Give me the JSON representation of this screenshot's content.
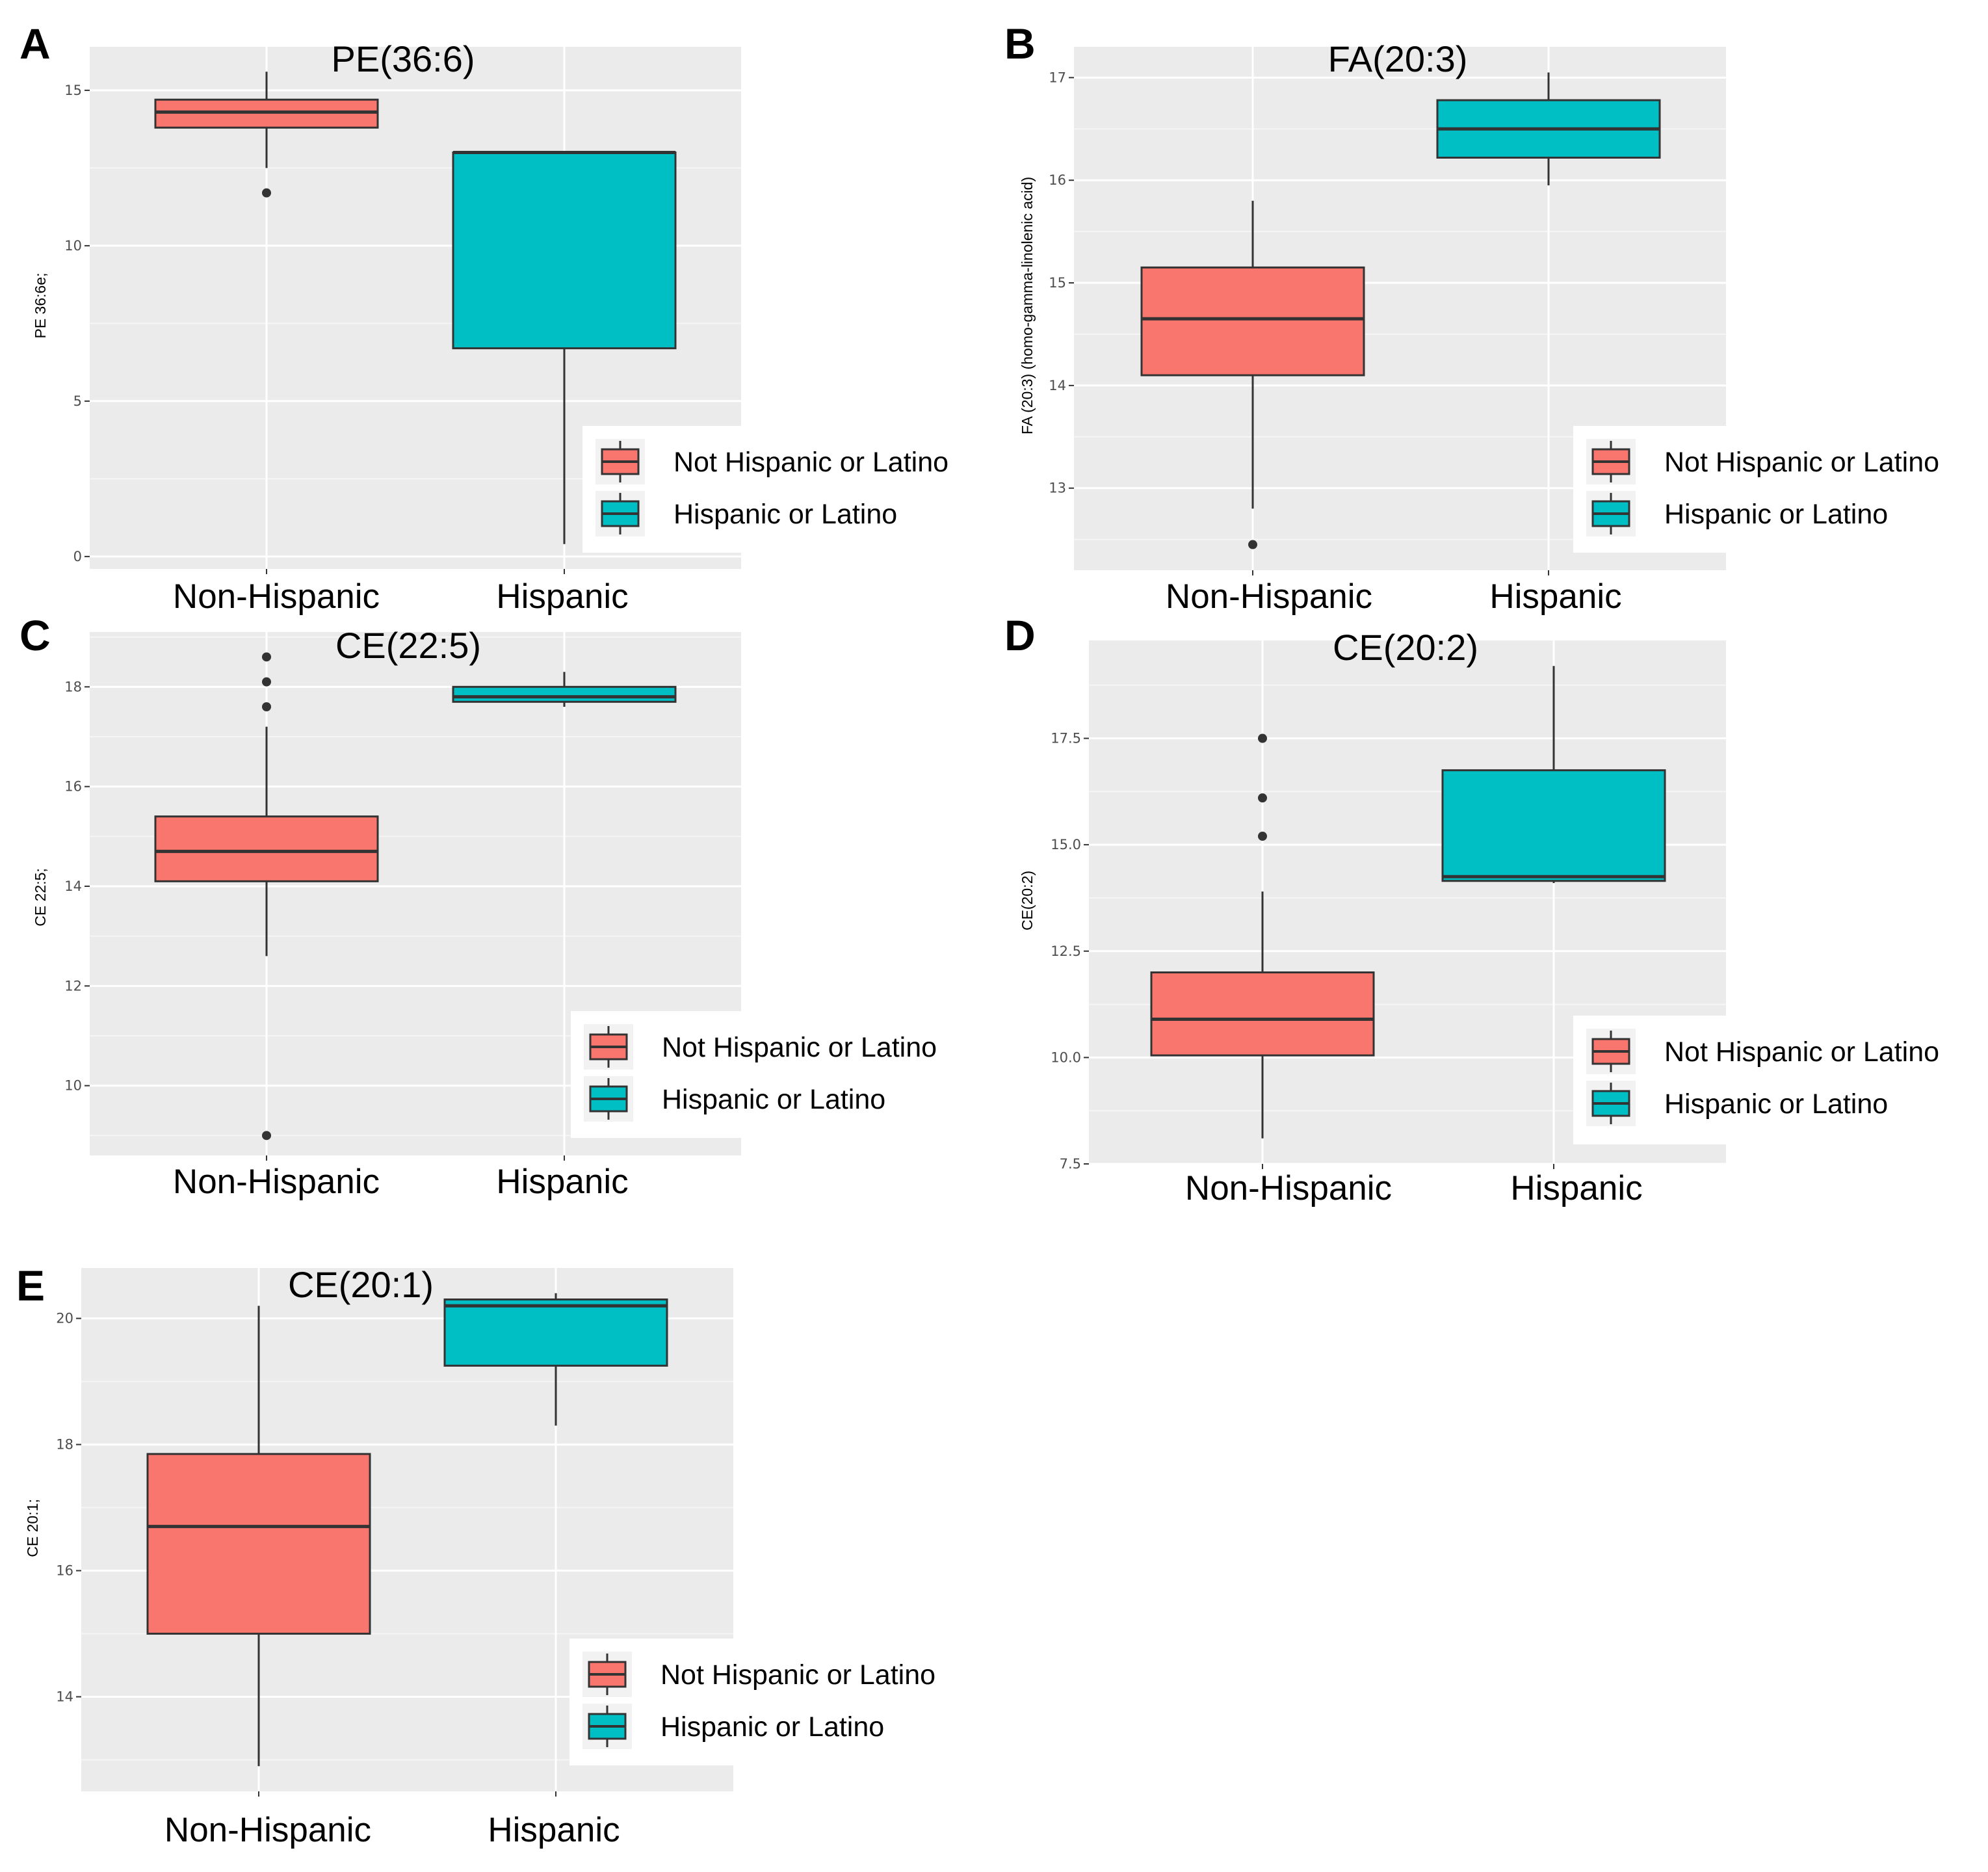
{
  "chart_data": [
    {
      "panel": "A",
      "type": "box",
      "title": "PE(36:6)",
      "ylabel": "PE 36:6e;",
      "ylim": [
        -0.4,
        16.4
      ],
      "yticks": [
        0,
        5,
        10,
        15
      ],
      "ytick_labels": [
        "0",
        "5",
        "10",
        "15"
      ],
      "categories": [
        "Non-Hispanic",
        "Hispanic"
      ],
      "series": [
        {
          "name": "Not Hispanic or Latino",
          "color": "#F8766D",
          "whisker_low": 12.5,
          "q1": 13.8,
          "median": 14.3,
          "q3": 14.7,
          "whisker_high": 15.6,
          "outliers": [
            11.7
          ]
        },
        {
          "name": "Hispanic or Latino",
          "color": "#00BFC4",
          "whisker_low": 0.4,
          "q1": 6.7,
          "median": 13.0,
          "q3": 13.0,
          "whisker_high": 13.0,
          "outliers": []
        }
      ],
      "legend": [
        "Not Hispanic or Latino",
        "Hispanic or Latino"
      ]
    },
    {
      "panel": "B",
      "type": "box",
      "title": "FA(20:3)",
      "ylabel": "FA (20:3) (homo-gamma-linolenic acid)",
      "ylim": [
        12.2,
        17.3
      ],
      "yticks": [
        13,
        14,
        15,
        16,
        17
      ],
      "ytick_labels": [
        "13",
        "14",
        "15",
        "16",
        "17"
      ],
      "categories": [
        "Non-Hispanic",
        "Hispanic"
      ],
      "series": [
        {
          "name": "Not Hispanic or Latino",
          "color": "#F8766D",
          "whisker_low": 12.8,
          "q1": 14.1,
          "median": 14.65,
          "q3": 15.15,
          "whisker_high": 15.8,
          "outliers": [
            12.45
          ]
        },
        {
          "name": "Hispanic or Latino",
          "color": "#00BFC4",
          "whisker_low": 15.95,
          "q1": 16.22,
          "median": 16.5,
          "q3": 16.78,
          "whisker_high": 17.05,
          "outliers": []
        }
      ],
      "legend": [
        "Not Hispanic or Latino",
        "Hispanic or Latino"
      ]
    },
    {
      "panel": "C",
      "type": "box",
      "title": "CE(22:5)",
      "ylabel": "CE 22:5;",
      "ylim": [
        8.6,
        19.1
      ],
      "yticks": [
        10,
        12,
        14,
        16,
        18
      ],
      "ytick_labels": [
        "10",
        "12",
        "14",
        "16",
        "18"
      ],
      "categories": [
        "Non-Hispanic",
        "Hispanic"
      ],
      "series": [
        {
          "name": "Not Hispanic or Latino",
          "color": "#F8766D",
          "whisker_low": 12.6,
          "q1": 14.1,
          "median": 14.7,
          "q3": 15.4,
          "whisker_high": 17.2,
          "outliers": [
            9.0,
            17.6,
            18.1,
            18.6
          ]
        },
        {
          "name": "Hispanic or Latino",
          "color": "#00BFC4",
          "whisker_low": 17.6,
          "q1": 17.7,
          "median": 17.8,
          "q3": 18.0,
          "whisker_high": 18.3,
          "outliers": []
        }
      ],
      "legend": [
        "Not Hispanic or Latino",
        "Hispanic or Latino"
      ]
    },
    {
      "panel": "D",
      "type": "box",
      "title": "CE(20:2)",
      "ylabel": "CE(20:2)",
      "ylim": [
        7.5,
        19.8
      ],
      "yticks": [
        7.5,
        10.0,
        12.5,
        15.0,
        17.5
      ],
      "ytick_labels": [
        "7.5",
        "10.0",
        "12.5",
        "15.0",
        "17.5"
      ],
      "categories": [
        "Non-Hispanic",
        "Hispanic"
      ],
      "series": [
        {
          "name": "Not Hispanic or Latino",
          "color": "#F8766D",
          "whisker_low": 8.1,
          "q1": 10.05,
          "median": 10.9,
          "q3": 12.0,
          "whisker_high": 13.9,
          "outliers": [
            15.2,
            16.1,
            17.5
          ]
        },
        {
          "name": "Hispanic or Latino",
          "color": "#00BFC4",
          "whisker_low": 14.1,
          "q1": 14.15,
          "median": 14.25,
          "q3": 16.75,
          "whisker_high": 19.2,
          "outliers": []
        }
      ],
      "legend": [
        "Not Hispanic or Latino",
        "Hispanic or Latino"
      ]
    },
    {
      "panel": "E",
      "type": "box",
      "title": "CE(20:1)",
      "ylabel": "CE 20:1;",
      "ylim": [
        12.5,
        20.8
      ],
      "yticks": [
        14,
        16,
        18,
        20
      ],
      "ytick_labels": [
        "14",
        "16",
        "18",
        "20"
      ],
      "categories": [
        "Non-Hispanic",
        "Hispanic"
      ],
      "series": [
        {
          "name": "Not Hispanic or Latino",
          "color": "#F8766D",
          "whisker_low": 12.9,
          "q1": 15.0,
          "median": 16.7,
          "q3": 17.85,
          "whisker_high": 20.2,
          "outliers": []
        },
        {
          "name": "Hispanic or Latino",
          "color": "#00BFC4",
          "whisker_low": 18.3,
          "q1": 19.25,
          "median": 20.2,
          "q3": 20.3,
          "whisker_high": 20.4,
          "outliers": []
        }
      ],
      "legend": [
        "Not Hispanic or Latino",
        "Hispanic or Latino"
      ]
    }
  ]
}
